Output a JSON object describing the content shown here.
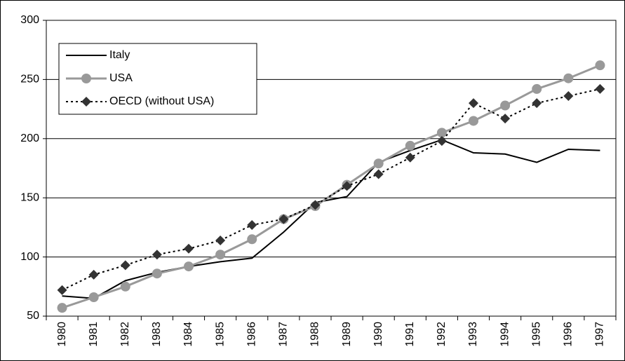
{
  "chart_data": {
    "type": "line",
    "categories": [
      "1980",
      "1981",
      "1982",
      "1983",
      "1984",
      "1985",
      "1986",
      "1987",
      "1988",
      "1989",
      "1990",
      "1991",
      "1992",
      "1993",
      "1994",
      "1995",
      "1996",
      "1997"
    ],
    "series": [
      {
        "name": "Italy",
        "color": "#000000",
        "marker": "none",
        "line_style": "solid",
        "values": [
          67,
          65,
          80,
          87,
          92,
          96,
          99,
          121,
          146,
          151,
          180,
          190,
          199,
          188,
          187,
          180,
          191,
          190
        ]
      },
      {
        "name": "USA",
        "color": "#999999",
        "marker": "circle",
        "line_style": "solid",
        "values": [
          57,
          66,
          75,
          86,
          92,
          102,
          115,
          132,
          143,
          161,
          179,
          194,
          205,
          215,
          228,
          242,
          251,
          262
        ]
      },
      {
        "name": "OECD (without USA)",
        "color": "#000000",
        "marker_color": "#333333",
        "marker": "diamond",
        "line_style": "dotted",
        "values": [
          72,
          85,
          93,
          102,
          107,
          114,
          127,
          132,
          144,
          160,
          170,
          184,
          198,
          230,
          217,
          230,
          236,
          242
        ]
      }
    ],
    "ylim": [
      50,
      300
    ],
    "yticks": [
      50,
      100,
      150,
      200,
      250,
      300
    ],
    "grid": true,
    "legend": "top-left"
  }
}
